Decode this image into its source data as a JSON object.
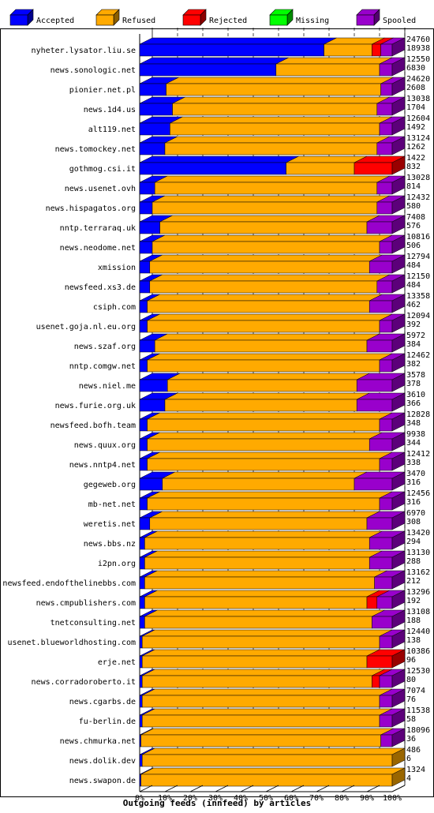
{
  "chart_data": {
    "type": "bar",
    "orientation": "horizontal",
    "stacked": true,
    "style": "3d",
    "xlabel": "Outgoing feeds (innfeed) by articles",
    "x_ticks": [
      "0%",
      "10%",
      "20%",
      "30%",
      "40%",
      "50%",
      "60%",
      "70%",
      "80%",
      "90%",
      "100%"
    ],
    "xlim": [
      0,
      100
    ],
    "legend_position": "top",
    "grid": "vertical dashed",
    "colors": {
      "Accepted": "#0000ff",
      "Refused": "#ffaa00",
      "Rejected": "#ff0000",
      "Missing": "#00ff00",
      "Spooled": "#9900cc"
    },
    "series_names": [
      "Accepted",
      "Refused",
      "Rejected",
      "Missing",
      "Spooled"
    ],
    "rows": [
      {
        "name": "nyheter.lysator.liu.se",
        "offered": "24760",
        "accepted": "18938",
        "pct": [
          73,
          19,
          3.5,
          0,
          4.5
        ]
      },
      {
        "name": "news.sonologic.net",
        "offered": "12550",
        "accepted": "6830",
        "pct": [
          54,
          41,
          0,
          0,
          5
        ]
      },
      {
        "name": "pionier.net.pl",
        "offered": "24620",
        "accepted": "2608",
        "pct": [
          10.5,
          85,
          0,
          0,
          4.5
        ]
      },
      {
        "name": "news.1d4.us",
        "offered": "13038",
        "accepted": "1704",
        "pct": [
          13,
          81,
          0,
          0,
          6
        ]
      },
      {
        "name": "alt119.net",
        "offered": "12604",
        "accepted": "1492",
        "pct": [
          12,
          83,
          0,
          0,
          5
        ]
      },
      {
        "name": "news.tomockey.net",
        "offered": "13124",
        "accepted": "1262",
        "pct": [
          10,
          84,
          0,
          0,
          6
        ]
      },
      {
        "name": "gothmog.csi.it",
        "offered": "1422",
        "accepted": "832",
        "pct": [
          58,
          27,
          15,
          0,
          0
        ]
      },
      {
        "name": "news.usenet.ovh",
        "offered": "13028",
        "accepted": "814",
        "pct": [
          6,
          88,
          0,
          0,
          6
        ]
      },
      {
        "name": "news.hispagatos.org",
        "offered": "12432",
        "accepted": "580",
        "pct": [
          5,
          89,
          0,
          0,
          6
        ]
      },
      {
        "name": "nntp.terraraq.uk",
        "offered": "7408",
        "accepted": "576",
        "pct": [
          8,
          82,
          0,
          0,
          10
        ]
      },
      {
        "name": "news.neodome.net",
        "offered": "10816",
        "accepted": "506",
        "pct": [
          5,
          90,
          0,
          0,
          5
        ]
      },
      {
        "name": "xmission",
        "offered": "12794",
        "accepted": "484",
        "pct": [
          4,
          87,
          0,
          0,
          9
        ]
      },
      {
        "name": "newsfeed.xs3.de",
        "offered": "12150",
        "accepted": "484",
        "pct": [
          4,
          90,
          0,
          0,
          6
        ]
      },
      {
        "name": "csiph.com",
        "offered": "13358",
        "accepted": "462",
        "pct": [
          3,
          88,
          0,
          0,
          9
        ]
      },
      {
        "name": "usenet.goja.nl.eu.org",
        "offered": "12094",
        "accepted": "392",
        "pct": [
          3,
          92,
          0,
          0,
          5
        ]
      },
      {
        "name": "news.szaf.org",
        "offered": "5972",
        "accepted": "384",
        "pct": [
          6,
          84,
          0,
          0,
          10
        ]
      },
      {
        "name": "nntp.comgw.net",
        "offered": "12462",
        "accepted": "382",
        "pct": [
          3,
          92,
          0,
          0,
          5
        ]
      },
      {
        "name": "news.niel.me",
        "offered": "3578",
        "accepted": "378",
        "pct": [
          11,
          75,
          0,
          0,
          14
        ]
      },
      {
        "name": "news.furie.org.uk",
        "offered": "3610",
        "accepted": "366",
        "pct": [
          10,
          76,
          0,
          0,
          14
        ]
      },
      {
        "name": "newsfeed.bofh.team",
        "offered": "12828",
        "accepted": "348",
        "pct": [
          3,
          92,
          0,
          0,
          5
        ]
      },
      {
        "name": "news.quux.org",
        "offered": "9938",
        "accepted": "344",
        "pct": [
          3,
          88,
          0,
          0,
          9
        ]
      },
      {
        "name": "news.nntp4.net",
        "offered": "12412",
        "accepted": "338",
        "pct": [
          3,
          92,
          0,
          0,
          5
        ]
      },
      {
        "name": "gegeweb.org",
        "offered": "3470",
        "accepted": "316",
        "pct": [
          9,
          76,
          0,
          0,
          15
        ]
      },
      {
        "name": "mb-net.net",
        "offered": "12456",
        "accepted": "316",
        "pct": [
          3,
          92,
          0,
          0,
          5
        ]
      },
      {
        "name": "weretis.net",
        "offered": "6970",
        "accepted": "308",
        "pct": [
          4,
          86,
          0,
          0,
          10
        ]
      },
      {
        "name": "news.bbs.nz",
        "offered": "13420",
        "accepted": "294",
        "pct": [
          2,
          89,
          0,
          0,
          9
        ]
      },
      {
        "name": "i2pn.org",
        "offered": "13130",
        "accepted": "288",
        "pct": [
          2,
          89,
          0,
          0,
          9
        ]
      },
      {
        "name": "newsfeed.endofthelinebbs.com",
        "offered": "13162",
        "accepted": "212",
        "pct": [
          2,
          91,
          0,
          0,
          7
        ]
      },
      {
        "name": "news.cmpublishers.com",
        "offered": "13296",
        "accepted": "192",
        "pct": [
          2,
          88,
          4,
          0,
          6
        ]
      },
      {
        "name": "tnetconsulting.net",
        "offered": "13108",
        "accepted": "188",
        "pct": [
          2,
          90,
          0,
          0,
          8
        ]
      },
      {
        "name": "usenet.blueworldhosting.com",
        "offered": "12440",
        "accepted": "138",
        "pct": [
          1,
          94,
          0,
          0,
          5
        ]
      },
      {
        "name": "erje.net",
        "offered": "10386",
        "accepted": "96",
        "pct": [
          1,
          89,
          10,
          0,
          0
        ]
      },
      {
        "name": "news.corradoroberto.it",
        "offered": "12530",
        "accepted": "80",
        "pct": [
          1,
          91,
          3,
          0,
          5
        ]
      },
      {
        "name": "news.cgarbs.de",
        "offered": "7074",
        "accepted": "76",
        "pct": [
          1,
          94,
          0,
          0,
          5
        ]
      },
      {
        "name": "fu-berlin.de",
        "offered": "11538",
        "accepted": "58",
        "pct": [
          1,
          94,
          0,
          0,
          5
        ]
      },
      {
        "name": "news.chmurka.net",
        "offered": "18096",
        "accepted": "36",
        "pct": [
          0.5,
          95,
          0,
          0,
          4.5
        ]
      },
      {
        "name": "news.dolik.dev",
        "offered": "486",
        "accepted": "6",
        "pct": [
          1,
          99,
          0,
          0,
          0
        ]
      },
      {
        "name": "news.swapon.de",
        "offered": "1324",
        "accepted": "4",
        "pct": [
          0.5,
          99.5,
          0,
          0,
          0
        ]
      }
    ]
  }
}
